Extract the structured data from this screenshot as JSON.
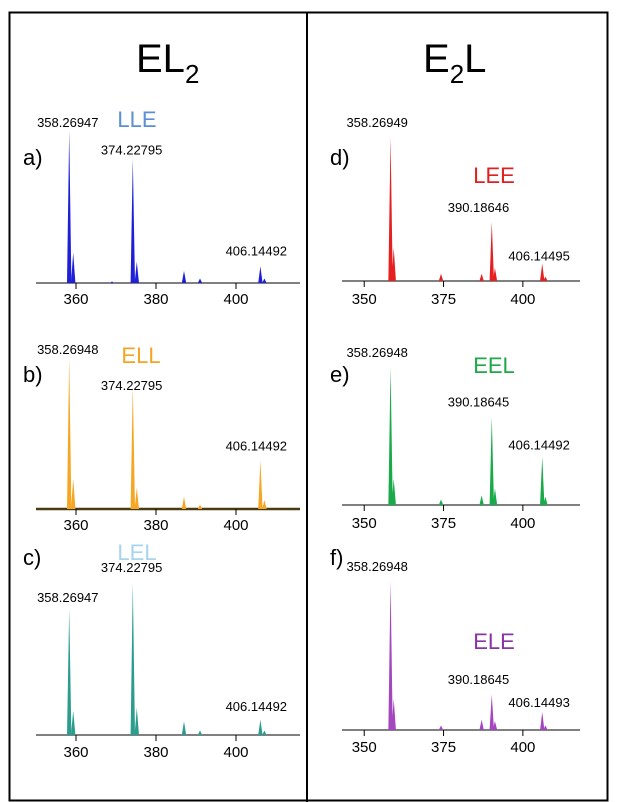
{
  "columns": [
    {
      "main": "EL",
      "sub": "2",
      "suffix": ""
    },
    {
      "main": "E",
      "sub": "2",
      "suffix": "L"
    }
  ],
  "chart_data": [
    {
      "type": "bar",
      "panel": "a)",
      "compound": "LLE",
      "compound_color": "#5b8fd6",
      "color": "#1f1fd8",
      "xlim": [
        350,
        416
      ],
      "ylim": [
        0,
        100
      ],
      "ticks": [
        {
          "value": 360,
          "label": "360"
        },
        {
          "value": 380,
          "label": "380"
        },
        {
          "value": 400,
          "label": "400"
        }
      ],
      "peaks": [
        [
          358.3,
          100
        ],
        [
          359.3,
          20
        ],
        [
          374.2,
          82
        ],
        [
          375.2,
          14
        ],
        [
          369.0,
          1
        ],
        [
          387.0,
          8
        ],
        [
          391.0,
          3
        ],
        [
          406.1,
          11
        ],
        [
          407.1,
          3
        ]
      ],
      "labels": [
        {
          "x": 358.26947,
          "text": "358.26947"
        },
        {
          "x": 374.22795,
          "text": "374.22795"
        },
        {
          "x": 406.14492,
          "text": "406.14492"
        }
      ]
    },
    {
      "type": "bar",
      "panel": "b)",
      "compound": "ELL",
      "compound_color": "#f2a623",
      "color": "#f5a623",
      "xlim": [
        350,
        416
      ],
      "ylim": [
        0,
        100
      ],
      "ticks": [
        {
          "value": 360,
          "label": "360"
        },
        {
          "value": 380,
          "label": "380"
        },
        {
          "value": 400,
          "label": "400"
        }
      ],
      "peaks": [
        [
          358.3,
          100
        ],
        [
          359.3,
          20
        ],
        [
          374.2,
          82
        ],
        [
          375.2,
          14
        ],
        [
          387.0,
          8
        ],
        [
          391.0,
          3
        ],
        [
          406.1,
          32
        ],
        [
          407.1,
          6
        ]
      ],
      "labels": [
        {
          "x": 358.26948,
          "text": "358.26948"
        },
        {
          "x": 374.22795,
          "text": "374.22795"
        },
        {
          "x": 406.14492,
          "text": "406.14492"
        }
      ]
    },
    {
      "type": "bar",
      "panel": "c)",
      "compound": "LEL",
      "compound_color": "#a8d4ee",
      "color": "#2a9d8f",
      "xlim": [
        350,
        416
      ],
      "ylim": [
        0,
        100
      ],
      "ticks": [
        {
          "value": 360,
          "label": "360"
        },
        {
          "value": 380,
          "label": "380"
        },
        {
          "value": 400,
          "label": "400"
        }
      ],
      "peaks": [
        [
          358.3,
          83
        ],
        [
          359.3,
          16
        ],
        [
          374.2,
          100
        ],
        [
          375.2,
          18
        ],
        [
          387.0,
          9
        ],
        [
          391.0,
          3
        ],
        [
          406.1,
          10
        ],
        [
          407.1,
          3
        ]
      ],
      "labels": [
        {
          "x": 358.26947,
          "text": "358.26947"
        },
        {
          "x": 374.22795,
          "text": "374.22795"
        },
        {
          "x": 406.14492,
          "text": "406.14492"
        }
      ]
    },
    {
      "type": "bar",
      "panel": "d)",
      "compound": "LEE",
      "compound_color": "#e02020",
      "color": "#e62020",
      "xlim": [
        343,
        418
      ],
      "ylim": [
        0,
        100
      ],
      "ticks": [
        {
          "value": 350,
          "label": "350"
        },
        {
          "value": 375,
          "label": "375"
        },
        {
          "value": 400,
          "label": "400"
        }
      ],
      "peaks": [
        [
          358.3,
          100
        ],
        [
          359.3,
          23
        ],
        [
          374.2,
          5
        ],
        [
          387.0,
          5
        ],
        [
          390.2,
          41
        ],
        [
          391.2,
          9
        ],
        [
          406.1,
          12
        ],
        [
          407.1,
          3
        ]
      ],
      "labels": [
        {
          "x": 358.26949,
          "text": "358.26949"
        },
        {
          "x": 390.18646,
          "text": "390.18646"
        },
        {
          "x": 406.14495,
          "text": "406.14495"
        }
      ]
    },
    {
      "type": "bar",
      "panel": "e)",
      "compound": "EEL",
      "compound_color": "#1fa84a",
      "color": "#1aaa4a",
      "xlim": [
        343,
        418
      ],
      "ylim": [
        0,
        100
      ],
      "ticks": [
        {
          "value": 350,
          "label": "350"
        },
        {
          "value": 375,
          "label": "375"
        },
        {
          "value": 400,
          "label": "400"
        }
      ],
      "peaks": [
        [
          358.3,
          100
        ],
        [
          359.3,
          19
        ],
        [
          374.2,
          4
        ],
        [
          387.0,
          7
        ],
        [
          390.2,
          64
        ],
        [
          391.2,
          12
        ],
        [
          406.1,
          35
        ],
        [
          407.1,
          6
        ]
      ],
      "labels": [
        {
          "x": 358.26948,
          "text": "358.26948"
        },
        {
          "x": 390.18645,
          "text": "390.18645"
        },
        {
          "x": 406.14492,
          "text": "406.14492"
        }
      ]
    },
    {
      "type": "bar",
      "panel": "f)",
      "compound": "ELE",
      "compound_color": "#8a35a5",
      "color": "#a447be",
      "xlim": [
        343,
        418
      ],
      "ylim": [
        0,
        100
      ],
      "ticks": [
        {
          "value": 350,
          "label": "350"
        },
        {
          "value": 375,
          "label": "375"
        },
        {
          "value": 400,
          "label": "400"
        }
      ],
      "peaks": [
        [
          358.3,
          100
        ],
        [
          359.3,
          21
        ],
        [
          374.2,
          3
        ],
        [
          387.0,
          7
        ],
        [
          390.2,
          24
        ],
        [
          391.2,
          6
        ],
        [
          406.1,
          12
        ],
        [
          407.1,
          3
        ]
      ],
      "labels": [
        {
          "x": 358.26948,
          "text": "358.26948"
        },
        {
          "x": 390.18645,
          "text": "390.18645"
        },
        {
          "x": 406.14493,
          "text": "406.14493"
        }
      ]
    }
  ]
}
